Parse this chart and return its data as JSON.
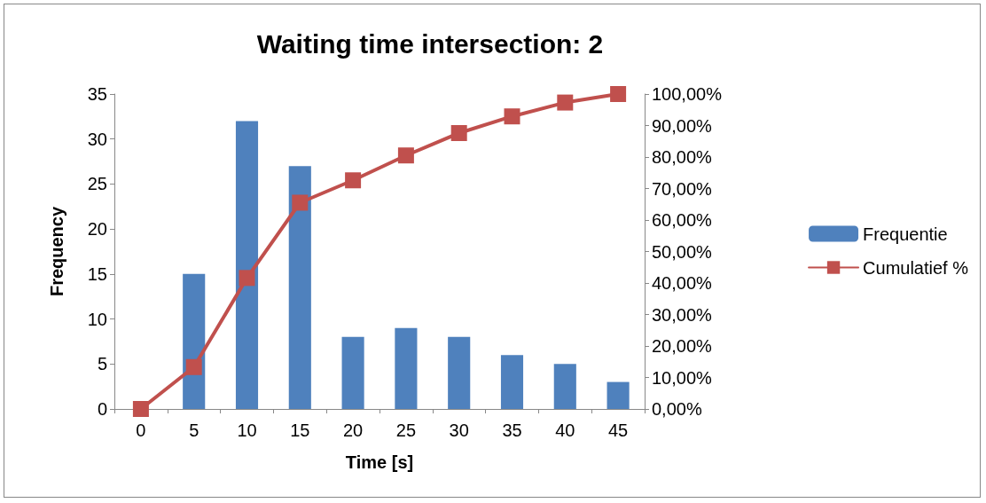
{
  "chart_data": {
    "type": "bar",
    "title": "Waiting time intersection: 2",
    "xlabel": "Time [s]",
    "ylabel": "Frequency",
    "categories": [
      "0",
      "5",
      "10",
      "15",
      "20",
      "25",
      "30",
      "35",
      "40",
      "45"
    ],
    "series": [
      {
        "name": "Frequentie",
        "color": "#4f81bd",
        "values": [
          0,
          15,
          32,
          27,
          8,
          9,
          8,
          6,
          5,
          3
        ]
      },
      {
        "name": "Cumulatief %",
        "type": "line",
        "axis": "y2",
        "color": "#c0504d",
        "values": [
          0,
          13.3,
          41.6,
          65.5,
          72.6,
          80.5,
          87.6,
          92.9,
          97.3,
          100
        ]
      }
    ],
    "ylim": [
      0,
      35
    ],
    "yticks": [
      0,
      5,
      10,
      15,
      20,
      25,
      30,
      35
    ],
    "y2lim": [
      0,
      100
    ],
    "y2ticks": [
      {
        "value": 0,
        "label": "0,00%"
      },
      {
        "value": 10,
        "label": "10,00%"
      },
      {
        "value": 20,
        "label": "20,00%"
      },
      {
        "value": 30,
        "label": "30,00%"
      },
      {
        "value": 40,
        "label": "40,00%"
      },
      {
        "value": 50,
        "label": "50,00%"
      },
      {
        "value": 60,
        "label": "60,00%"
      },
      {
        "value": 70,
        "label": "70,00%"
      },
      {
        "value": 80,
        "label": "80,00%"
      },
      {
        "value": 90,
        "label": "90,00%"
      },
      {
        "value": 100,
        "label": "100,00%"
      }
    ],
    "grid": false,
    "legend": "right",
    "marker": "square",
    "line_style": "solid"
  }
}
